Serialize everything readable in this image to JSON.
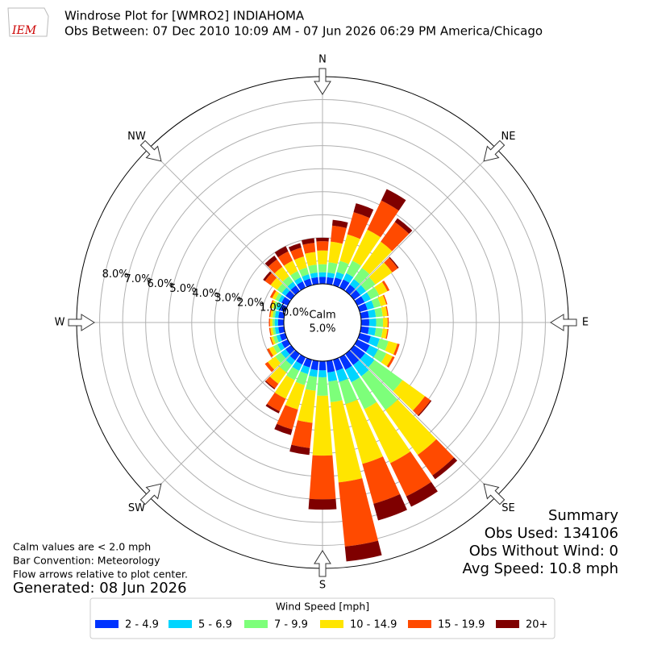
{
  "chart_data": {
    "type": "windrose",
    "title": "Windrose Plot for [WMRO2] INDIAHOMA",
    "subtitle": "Obs Between: 07 Dec 2010 10:09 AM - 07 Jun 2026 06:29 PM America/Chicago",
    "logo": "IEM",
    "x": [
      0,
      10,
      20,
      30,
      40,
      50,
      60,
      70,
      80,
      90,
      100,
      110,
      120,
      130,
      140,
      150,
      160,
      170,
      180,
      190,
      200,
      210,
      220,
      230,
      240,
      250,
      260,
      270,
      280,
      290,
      300,
      310,
      320,
      330,
      340,
      350
    ],
    "thetaticks": [
      {
        "value": 0,
        "label": "N"
      },
      {
        "value": 45,
        "label": "NE"
      },
      {
        "value": 90,
        "label": "E"
      },
      {
        "value": 135,
        "label": "SE"
      },
      {
        "value": 180,
        "label": "S"
      },
      {
        "value": 225,
        "label": "SW"
      },
      {
        "value": 270,
        "label": "W"
      },
      {
        "value": 315,
        "label": "NW"
      }
    ],
    "ylim": [
      0,
      9
    ],
    "yticks": [
      {
        "value": 0,
        "label": "0.0%"
      },
      {
        "value": 1,
        "label": "1.0%"
      },
      {
        "value": 2,
        "label": "2.0%"
      },
      {
        "value": 3,
        "label": "3.0%"
      },
      {
        "value": 4,
        "label": "4.0%"
      },
      {
        "value": 5,
        "label": "5.0%"
      },
      {
        "value": 6,
        "label": "6.0%"
      },
      {
        "value": 7,
        "label": "7.0%"
      },
      {
        "value": 8,
        "label": "8.0%"
      }
    ],
    "grid": true,
    "calm": {
      "label": "Calm",
      "value": 5,
      "value_label": "5.0%"
    },
    "legend_title": "Wind Speed [mph]",
    "series": [
      {
        "name": "2 - 4.9",
        "color": "#0033ff",
        "values": [
          0.3,
          0.3,
          0.35,
          0.4,
          0.35,
          0.35,
          0.35,
          0.35,
          0.35,
          0.35,
          0.35,
          0.5,
          0.6,
          0.6,
          0.6,
          0.6,
          0.5,
          0.5,
          0.4,
          0.4,
          0.35,
          0.35,
          0.35,
          0.3,
          0.3,
          0.25,
          0.25,
          0.25,
          0.25,
          0.25,
          0.3,
          0.3,
          0.3,
          0.3,
          0.3,
          0.3
        ]
      },
      {
        "name": "5 - 6.9",
        "color": "#00d5ff",
        "values": [
          0.2,
          0.2,
          0.25,
          0.3,
          0.3,
          0.3,
          0.3,
          0.3,
          0.3,
          0.3,
          0.3,
          0.4,
          0.4,
          0.5,
          0.6,
          0.6,
          0.5,
          0.4,
          0.3,
          0.3,
          0.3,
          0.3,
          0.25,
          0.25,
          0.2,
          0.15,
          0.15,
          0.15,
          0.15,
          0.15,
          0.15,
          0.2,
          0.2,
          0.2,
          0.2,
          0.2
        ]
      },
      {
        "name": "7 - 9.9",
        "color": "#7dff7a",
        "values": [
          0.35,
          0.45,
          0.5,
          0.6,
          0.6,
          0.5,
          0.4,
          0.3,
          0.3,
          0.3,
          0.3,
          0.4,
          0.4,
          1.5,
          1.8,
          1.3,
          1.0,
          0.9,
          0.8,
          0.6,
          0.5,
          0.45,
          0.4,
          0.3,
          0.2,
          0.15,
          0.1,
          0.1,
          0.1,
          0.15,
          0.15,
          0.25,
          0.3,
          0.3,
          0.3,
          0.35
        ]
      },
      {
        "name": "10 - 14.9",
        "color": "#ffe500",
        "values": [
          0.6,
          0.9,
          1.2,
          1.5,
          1.4,
          0.9,
          0.4,
          0.25,
          0.2,
          0.2,
          0.2,
          0.4,
          0.3,
          1.2,
          2.4,
          2.6,
          2.7,
          3.5,
          2.6,
          1.4,
          1.1,
          0.9,
          0.6,
          0.4,
          0.2,
          0.1,
          0.1,
          0.1,
          0.1,
          0.1,
          0.15,
          0.35,
          0.5,
          0.5,
          0.5,
          0.55
        ]
      },
      {
        "name": "15 - 19.9",
        "color": "#ff4a00",
        "values": [
          0.4,
          0.7,
          1.0,
          1.4,
          1.05,
          0.3,
          0.1,
          0.05,
          0.05,
          0.05,
          0.05,
          0.1,
          0.1,
          0.3,
          1.1,
          1.6,
          1.8,
          2.8,
          1.9,
          1.1,
          0.9,
          0.6,
          0.25,
          0.15,
          0.1,
          0.05,
          0.05,
          0.05,
          0.05,
          0.05,
          0.1,
          0.3,
          0.4,
          0.45,
          0.4,
          0.4
        ]
      },
      {
        "name": "20+",
        "color": "#7f0000",
        "values": [
          0.15,
          0.25,
          0.4,
          0.55,
          0.2,
          0.05,
          0,
          0,
          0,
          0,
          0,
          0,
          0,
          0.05,
          0.2,
          0.5,
          0.75,
          0.65,
          0.45,
          0.3,
          0.25,
          0.1,
          0.05,
          0,
          0,
          0,
          0,
          0,
          0,
          0,
          0,
          0.1,
          0.2,
          0.25,
          0.2,
          0.2
        ]
      }
    ],
    "summary": [
      "Summary",
      "Obs Used: 134106",
      "Obs Without Wind: 0",
      "Avg Speed: 10.8 mph"
    ],
    "notes": [
      "Calm values are < 2.0 mph",
      "Bar Convention: Meteorology",
      "Flow arrows relative to plot center."
    ],
    "generated": "Generated: 08 Jun 2026"
  }
}
